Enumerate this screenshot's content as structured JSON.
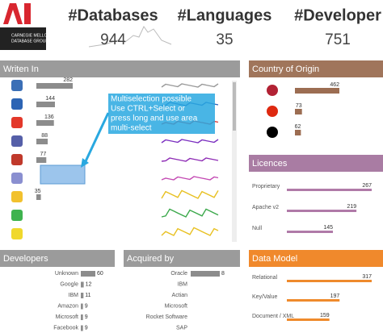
{
  "header": {
    "logo_lines": [
      "CARNEGIE MELLON",
      "DATABASE GROUP"
    ]
  },
  "kpis": [
    {
      "label": "#Databases",
      "value": 944
    },
    {
      "label": "#Languages",
      "value": 35
    },
    {
      "label": "#Developer",
      "value": 751
    }
  ],
  "annotation": [
    "Multiselection possible",
    "Use CTRL+Select or",
    "press long and use area",
    "multi-select"
  ],
  "chart_data": [
    {
      "type": "bar",
      "title": "Writen In",
      "categories": [
        null,
        null,
        null,
        null,
        null,
        null,
        null,
        null,
        null
      ],
      "values": [
        282,
        144,
        136,
        88,
        77,
        null,
        35,
        null,
        null
      ],
      "color": "#8c8c8c",
      "header_color": "#9b9b9b"
    },
    {
      "type": "bar",
      "title": "Country of Origin",
      "categories": [
        null,
        null,
        null
      ],
      "values": [
        462,
        73,
        62
      ],
      "color": "#9c6d52",
      "header_color": "#a0755b"
    },
    {
      "type": "bar",
      "title": "Licences",
      "categories": [
        "Proprietary",
        "Apache v2",
        "Null"
      ],
      "values": [
        267,
        219,
        145
      ],
      "color": "#b07aa8",
      "header_color": "#a97ca3"
    },
    {
      "type": "bar",
      "title": "Developers",
      "categories": [
        "Unknown",
        "Google",
        "IBM",
        "Amazon",
        "Microsoft",
        "Facebook"
      ],
      "values": [
        60,
        12,
        11,
        9,
        9,
        9
      ],
      "color": "#8c8c8c",
      "header_color": "#9b9b9b"
    },
    {
      "type": "bar",
      "title": "Acquired by",
      "categories": [
        "Oracle",
        "IBM",
        "Actian",
        "Microsoft",
        "Rocket Software",
        "SAP"
      ],
      "values": [
        8,
        null,
        null,
        null,
        null,
        null
      ],
      "color": "#8c8c8c",
      "header_color": "#9b9b9b"
    },
    {
      "type": "bar",
      "title": "Data Model",
      "categories": [
        "Relational",
        "Key/Value",
        "Document / XML"
      ],
      "values": [
        317,
        197,
        159
      ],
      "color": "#ef8a2c",
      "header_color": "#f0892c"
    }
  ]
}
